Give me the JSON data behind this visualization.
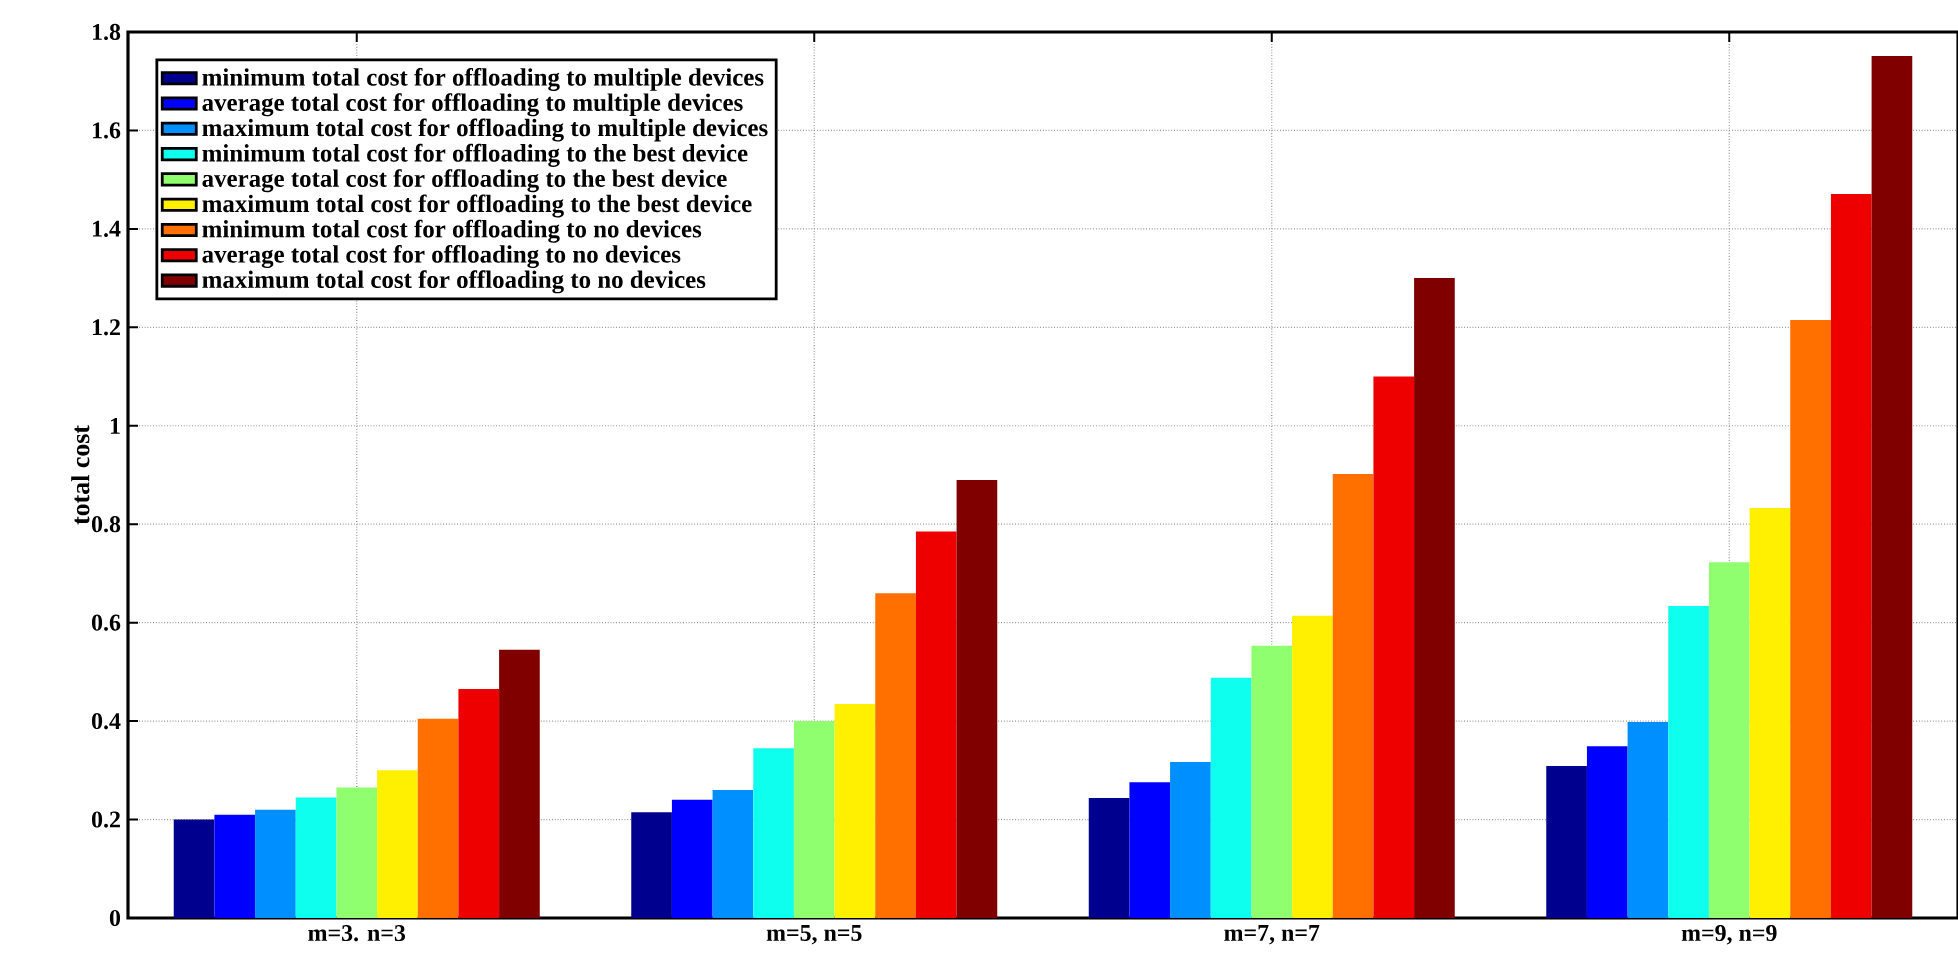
{
  "chart_data": {
    "type": "bar",
    "ylabel": "total cost",
    "categories": [
      "m=3. n=3",
      "m=5, n=5",
      "m=7, n=7",
      "m=9, n=9"
    ],
    "series": [
      {
        "name": "minimum total cost for offloading to multiple devices",
        "color": "#00008f",
        "values": [
          0.2,
          0.215,
          0.244,
          0.309
        ]
      },
      {
        "name": "average total cost for offloading to multiple devices",
        "color": "#0000ff",
        "values": [
          0.21,
          0.24,
          0.276,
          0.349
        ]
      },
      {
        "name": "maximum total cost for offloading to multiple devices",
        "color": "#008fff",
        "values": [
          0.22,
          0.26,
          0.317,
          0.398
        ]
      },
      {
        "name": "minimum total cost for offloading to the best device",
        "color": "#0fffef",
        "values": [
          0.245,
          0.345,
          0.488,
          0.634
        ]
      },
      {
        "name": "average total cost for offloading to the best device",
        "color": "#8fff6f",
        "values": [
          0.265,
          0.4,
          0.553,
          0.723
        ]
      },
      {
        "name": "maximum total cost for offloading to the best device",
        "color": "#ffef00",
        "values": [
          0.3,
          0.435,
          0.614,
          0.833
        ]
      },
      {
        "name": "minimum total cost for offloading to no devices",
        "color": "#ff7000",
        "values": [
          0.405,
          0.66,
          0.902,
          1.215
        ]
      },
      {
        "name": "average total cost for offloading to no devices",
        "color": "#ef0000",
        "values": [
          0.465,
          0.785,
          1.1,
          1.471
        ]
      },
      {
        "name": "maximum total cost for offloading to no devices",
        "color": "#800000",
        "values": [
          0.545,
          0.89,
          1.3,
          1.751
        ]
      }
    ],
    "ylim": [
      0,
      1.8
    ],
    "yticks": [
      0,
      0.2,
      0.4,
      0.6,
      0.8,
      1,
      1.2,
      1.4,
      1.6,
      1.8
    ],
    "grid": true,
    "legend": "top left"
  }
}
